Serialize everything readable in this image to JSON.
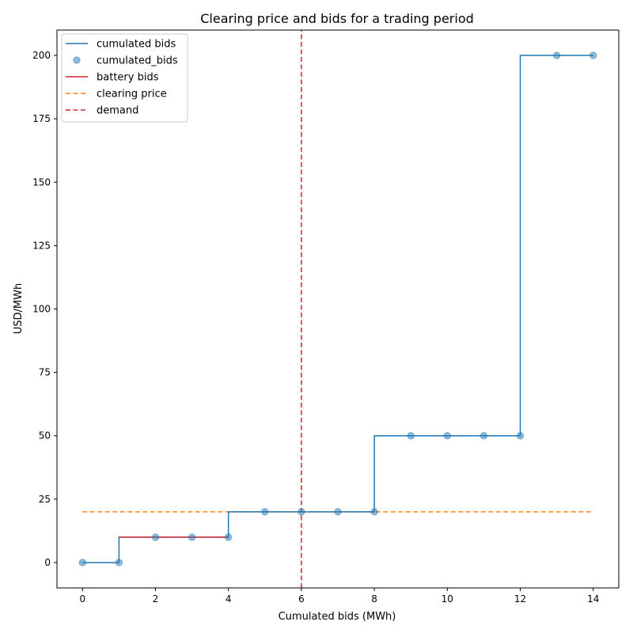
{
  "chart_data": {
    "type": "line",
    "title": "Clearing price and bids for a trading period",
    "xlabel": "Cumulated bids (MWh)",
    "ylabel": "USD/MWh",
    "xlim": [
      -0.7,
      14.7
    ],
    "ylim": [
      -10,
      210
    ],
    "xticks": [
      0,
      2,
      4,
      6,
      8,
      10,
      12,
      14
    ],
    "yticks": [
      0,
      25,
      50,
      75,
      100,
      125,
      150,
      175,
      200
    ],
    "grid": false,
    "legend_position": "top-left",
    "series": [
      {
        "name": "cumulated bids",
        "kind": "step-line",
        "color": "#1f77b4",
        "x": [
          0,
          1,
          1,
          4,
          4,
          8,
          8,
          12,
          12,
          14
        ],
        "y": [
          0,
          0,
          10,
          10,
          20,
          20,
          50,
          50,
          200,
          200
        ]
      },
      {
        "name": "cumulated_bids",
        "kind": "points",
        "color": "#1f77b4",
        "x": [
          0,
          1,
          2,
          3,
          4,
          5,
          6,
          7,
          8,
          9,
          10,
          11,
          12,
          13,
          14
        ],
        "y": [
          0,
          0,
          10,
          10,
          10,
          20,
          20,
          20,
          20,
          50,
          50,
          50,
          50,
          200,
          200
        ]
      },
      {
        "name": "battery bids",
        "kind": "line",
        "color": "#d62728",
        "x": [
          1,
          4
        ],
        "y": [
          10,
          10
        ]
      },
      {
        "name": "clearing price",
        "kind": "hline-dashed",
        "color": "#ff7f0e",
        "x": [
          0,
          14
        ],
        "y": [
          20,
          20
        ]
      },
      {
        "name": "demand",
        "kind": "vline-dashed",
        "color": "#d62728",
        "x": [
          6,
          6
        ],
        "y": [
          -10,
          210
        ]
      }
    ]
  }
}
